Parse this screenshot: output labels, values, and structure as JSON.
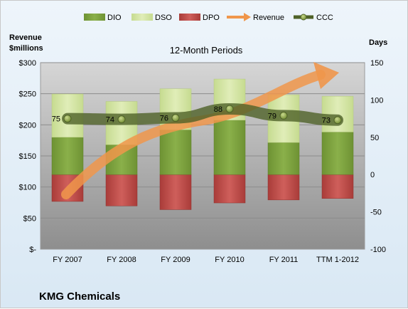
{
  "chart_data": {
    "type": "bar",
    "subtitle": "12-Month Periods",
    "company": "KMG Chemicals",
    "categories": [
      "FY 2007",
      "FY 2008",
      "FY 2009",
      "FY 2010",
      "FY 2011",
      "TTM 1-2012"
    ],
    "left_axis": {
      "label_line1": "Revenue",
      "label_line2": "$millions",
      "ticks": [
        "$-",
        "$50",
        "$100",
        "$150",
        "$200",
        "$250",
        "$300"
      ],
      "range": [
        0,
        300
      ]
    },
    "right_axis": {
      "label": "Days",
      "ticks": [
        "-100",
        "-50",
        "0",
        "50",
        "100",
        "150"
      ],
      "range": [
        -100,
        150
      ]
    },
    "stack_series": [
      {
        "name": "DIO",
        "values": [
          50,
          40,
          60,
          73,
          43,
          57
        ],
        "color": "#7a9e3a"
      },
      {
        "name": "DSO",
        "values": [
          58,
          58,
          55,
          55,
          64,
          48
        ],
        "color": "#d3e4a4"
      }
    ],
    "dpo_series": {
      "name": "DPO",
      "values": [
        -36,
        -42,
        -47,
        -38,
        -34,
        -32
      ],
      "color": "#c0504d"
    },
    "ccc_series": {
      "name": "CCC",
      "values": [
        75,
        74,
        76,
        88,
        79,
        73
      ],
      "labels": [
        "75",
        "74",
        "76",
        "88",
        "79",
        "73"
      ],
      "color": "#4f6228"
    },
    "revenue_series": {
      "name": "Revenue",
      "color": "#f0964b"
    },
    "legend_placement": "top"
  }
}
